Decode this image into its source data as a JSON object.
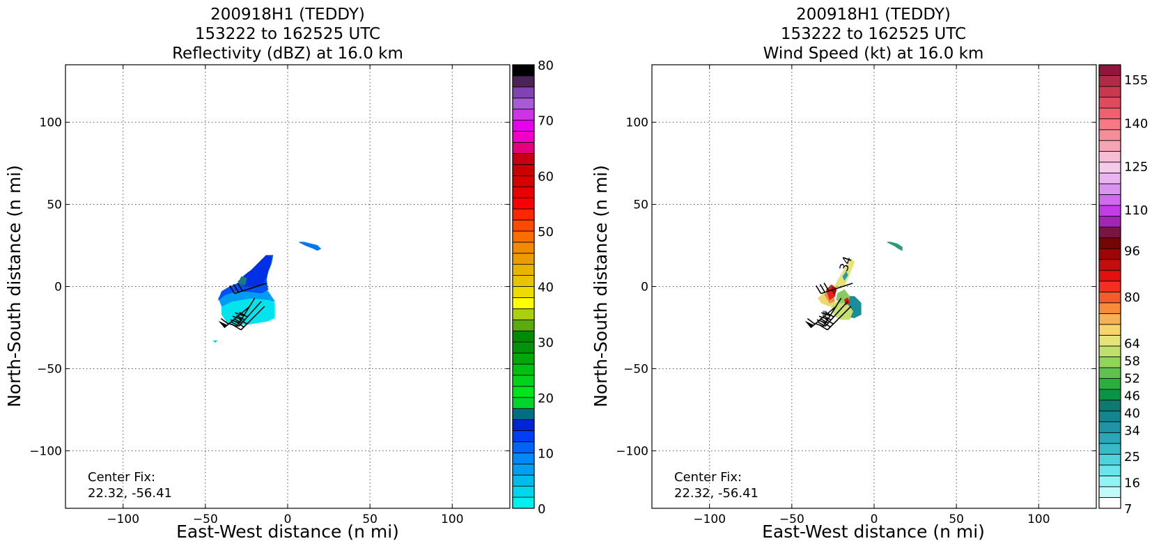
{
  "chart_data": [
    {
      "type": "heatmap",
      "title_lines": [
        "200918H1 (TEDDY)",
        "153222 to 162525 UTC",
        "Reflectivity (dBZ) at 16.0 km"
      ],
      "xlabel": "East-West distance (n mi)",
      "ylabel": "North-South distance (n mi)",
      "xlim": [
        -135,
        135
      ],
      "ylim": [
        -135,
        135
      ],
      "xticks": [
        -100,
        -50,
        0,
        50,
        100
      ],
      "yticks": [
        -100,
        -50,
        0,
        50,
        100
      ],
      "grid": true,
      "annotation": [
        "Center Fix:",
        "22.32, -56.41"
      ],
      "colorbar": {
        "min": 0,
        "max": 80,
        "ticks": [
          0,
          10,
          20,
          30,
          40,
          50,
          60,
          70,
          80
        ],
        "colors": [
          "#00f0f0",
          "#00d6ec",
          "#00bbeb",
          "#00a0f0",
          "#0089f7",
          "#0064fa",
          "#003ef6",
          "#0024d6",
          "#006e82",
          "#00d52c",
          "#00e41c",
          "#00d31a",
          "#00c010",
          "#00a80b",
          "#009209",
          "#008a05",
          "#5aac0c",
          "#abd00d",
          "#ffff00",
          "#ecdd00",
          "#e8c400",
          "#e8b400",
          "#ec9c00",
          "#f08a00",
          "#fa6e00",
          "#ff4800",
          "#fe2600",
          "#fb0000",
          "#e90000",
          "#d70000",
          "#cc0000",
          "#c60012",
          "#e5007b",
          "#f000c6",
          "#e600ec",
          "#cc35e6",
          "#aa5ad6",
          "#8044b0",
          "#4a2458",
          "#000000"
        ]
      },
      "echo_regions": [
        {
          "color": "#00e4ee",
          "polygon": [
            [
              -40,
              -17
            ],
            [
              -36,
              -23
            ],
            [
              -24,
              -23
            ],
            [
              -12,
              -21
            ],
            [
              -8,
              -19
            ],
            [
              -8,
              -10
            ],
            [
              -12,
              -7
            ],
            [
              -22,
              -6
            ],
            [
              -34,
              -8
            ],
            [
              -40,
              -12
            ]
          ]
        },
        {
          "color": "#009cf4",
          "polygon": [
            [
              -40,
              -12
            ],
            [
              -42,
              -7
            ],
            [
              -38,
              -3
            ],
            [
              -32,
              -2
            ],
            [
              -22,
              -1
            ],
            [
              -12,
              -3
            ],
            [
              -8,
              -9
            ],
            [
              -12,
              -8
            ],
            [
              -22,
              -7
            ],
            [
              -34,
              -9
            ]
          ]
        },
        {
          "color": "#0050f8",
          "polygon": [
            [
              -42,
              -8
            ],
            [
              -40,
              -3
            ],
            [
              -35,
              0
            ],
            [
              -30,
              2
            ],
            [
              -26,
              5
            ],
            [
              -22,
              8
            ],
            [
              -18,
              12
            ],
            [
              -15,
              16
            ],
            [
              -12,
              19
            ],
            [
              -9,
              19
            ],
            [
              -10,
              14
            ],
            [
              -12,
              9
            ],
            [
              -13,
              4
            ],
            [
              -12,
              -2
            ],
            [
              -16,
              -4
            ],
            [
              -24,
              -3
            ],
            [
              -32,
              -3
            ],
            [
              -38,
              -5
            ]
          ]
        },
        {
          "color": "#0030e6",
          "polygon": [
            [
              -30,
              3
            ],
            [
              -26,
              7
            ],
            [
              -22,
              10
            ],
            [
              -17,
              15
            ],
            [
              -13,
              19
            ],
            [
              -10,
              18
            ],
            [
              -11,
              12
            ],
            [
              -13,
              6
            ],
            [
              -15,
              2
            ],
            [
              -20,
              0
            ],
            [
              -26,
              0
            ]
          ]
        },
        {
          "color": "#1a7a82",
          "polygon": [
            [
              -30,
              2
            ],
            [
              -28,
              6
            ],
            [
              -25,
              5
            ],
            [
              -26,
              1
            ]
          ]
        },
        {
          "color": "#0078f4",
          "polygon": [
            [
              7,
              27
            ],
            [
              11,
              25
            ],
            [
              16,
              23
            ],
            [
              18,
              22
            ],
            [
              20,
              23
            ],
            [
              18,
              25
            ],
            [
              14,
              26
            ],
            [
              10,
              27
            ]
          ]
        },
        {
          "color": "#00d0ec",
          "polygon": [
            [
              -45,
              -33
            ],
            [
              -44,
              -34
            ],
            [
              -43,
              -33
            ]
          ]
        }
      ],
      "wind_barbs": [
        {
          "x": -20,
          "y": -7,
          "dir_from_deg": 212,
          "flags": 0,
          "full": 4,
          "half": 0
        },
        {
          "x": -13,
          "y": 2,
          "dir_from_deg": 252,
          "flags": 0,
          "full": 3,
          "half": 0
        },
        {
          "x": -23,
          "y": -12,
          "dir_from_deg": 230,
          "flags": 1,
          "full": 1,
          "half": 0
        },
        {
          "x": -16,
          "y": -9,
          "dir_from_deg": 222,
          "flags": 0,
          "full": 4,
          "half": 0
        },
        {
          "x": -14,
          "y": -12,
          "dir_from_deg": 225,
          "flags": 0,
          "full": 3,
          "half": 0
        }
      ]
    },
    {
      "type": "heatmap",
      "title_lines": [
        "200918H1 (TEDDY)",
        "153222 to 162525 UTC",
        "Wind Speed (kt) at 16.0 km"
      ],
      "xlabel": "East-West distance (n mi)",
      "ylabel": "North-South distance (n mi)",
      "xlim": [
        -135,
        135
      ],
      "ylim": [
        -135,
        135
      ],
      "xticks": [
        -100,
        -50,
        0,
        50,
        100
      ],
      "yticks": [
        -100,
        -50,
        0,
        50,
        100
      ],
      "grid": true,
      "annotation": [
        "Center Fix:",
        "22.32, -56.41"
      ],
      "contour_label": "34",
      "colorbar": {
        "min": 7,
        "max": 160,
        "ticks": [
          7,
          16,
          25,
          34,
          40,
          46,
          52,
          58,
          64,
          80,
          96,
          110,
          125,
          140,
          155
        ],
        "colors": [
          "#ffffff",
          "#c2fafa",
          "#90f4f4",
          "#6ae6ea",
          "#4fd2dc",
          "#36bac8",
          "#2aa7b6",
          "#1e94a6",
          "#14848e",
          "#0c7a6e",
          "#089444",
          "#2aae3e",
          "#5ec24c",
          "#92d45a",
          "#c0e06e",
          "#e4e47a",
          "#f8d46c",
          "#f8b054",
          "#f88a3c",
          "#f45c2c",
          "#f42e20",
          "#e41010",
          "#c40e0e",
          "#9c0606",
          "#740606",
          "#7a1440",
          "#a424b4",
          "#c43ce8",
          "#d06aee",
          "#dc92f0",
          "#eab4f0",
          "#f4ccea",
          "#f8bcd4",
          "#f7a4b4",
          "#f68e9a",
          "#f67a84",
          "#f06070",
          "#e04a5e",
          "#c8394f",
          "#b02c46",
          "#92163c"
        ]
      },
      "wind_regions": [
        {
          "color": "#1a8c9a",
          "polygon": [
            [
              -18,
              -6
            ],
            [
              -12,
              -6
            ],
            [
              -8,
              -10
            ],
            [
              -8,
              -17
            ],
            [
              -12,
              -19
            ],
            [
              -18,
              -18
            ],
            [
              -20,
              -13
            ]
          ]
        },
        {
          "color": "#c8e070",
          "polygon": [
            [
              -26,
              -12
            ],
            [
              -24,
              -18
            ],
            [
              -20,
              -20
            ],
            [
              -15,
              -20
            ],
            [
              -13,
              -15
            ],
            [
              -17,
              -10
            ],
            [
              -22,
              -9
            ]
          ]
        },
        {
          "color": "#88cc60",
          "polygon": [
            [
              -22,
              -4
            ],
            [
              -18,
              -2
            ],
            [
              -15,
              -6
            ],
            [
              -16,
              -10
            ],
            [
              -20,
              -10
            ],
            [
              -23,
              -8
            ]
          ]
        },
        {
          "color": "#f0d870",
          "polygon": [
            [
              -34,
              -7
            ],
            [
              -32,
              -10
            ],
            [
              -27,
              -12
            ],
            [
              -24,
              -10
            ],
            [
              -26,
              -5
            ],
            [
              -30,
              -4
            ]
          ]
        },
        {
          "color": "#f09040",
          "polygon": [
            [
              -30,
              -5
            ],
            [
              -27,
              -10
            ],
            [
              -24,
              -9
            ],
            [
              -25,
              -4
            ],
            [
              -28,
              -3
            ]
          ]
        },
        {
          "color": "#e82020",
          "polygon": [
            [
              -29,
              -2
            ],
            [
              -27,
              -8
            ],
            [
              -24,
              -6
            ],
            [
              -23,
              -1
            ],
            [
              -26,
              1
            ]
          ]
        },
        {
          "color": "#a40c0c",
          "polygon": [
            [
              -26,
              -2
            ],
            [
              -24,
              -5
            ],
            [
              -23,
              -2
            ],
            [
              -25,
              0
            ]
          ]
        },
        {
          "color": "#e4e47a",
          "polygon": [
            [
              -24,
              0
            ],
            [
              -22,
              4
            ],
            [
              -19,
              9
            ],
            [
              -16,
              14
            ],
            [
              -14,
              17
            ],
            [
              -12,
              15
            ],
            [
              -14,
              10
            ],
            [
              -16,
              5
            ],
            [
              -18,
              1
            ],
            [
              -21,
              -1
            ]
          ]
        },
        {
          "color": "#2a9ab0",
          "polygon": [
            [
              -19,
              6
            ],
            [
              -17,
              9
            ],
            [
              -16,
              7
            ],
            [
              -18,
              4
            ]
          ]
        },
        {
          "color": "#e41010",
          "polygon": [
            [
              -18,
              -8
            ],
            [
              -16,
              -7
            ],
            [
              -15,
              -10
            ],
            [
              -17,
              -11
            ]
          ]
        },
        {
          "color": "#2a9a7a",
          "polygon": [
            [
              8,
              27
            ],
            [
              12,
              25
            ],
            [
              15,
              23
            ],
            [
              17,
              22
            ],
            [
              17,
              24
            ],
            [
              14,
              26
            ],
            [
              10,
              27
            ]
          ]
        },
        {
          "color": "#6a7a7a",
          "polygon": [
            [
              -31,
              -15
            ],
            [
              -29,
              -15
            ],
            [
              -29,
              -17
            ],
            [
              -31,
              -17
            ]
          ]
        }
      ],
      "wind_barbs": [
        {
          "x": -20,
          "y": -7,
          "dir_from_deg": 212,
          "flags": 0,
          "full": 4,
          "half": 0
        },
        {
          "x": -13,
          "y": 2,
          "dir_from_deg": 252,
          "flags": 0,
          "full": 3,
          "half": 0
        },
        {
          "x": -23,
          "y": -12,
          "dir_from_deg": 230,
          "flags": 1,
          "full": 1,
          "half": 0
        },
        {
          "x": -16,
          "y": -9,
          "dir_from_deg": 222,
          "flags": 0,
          "full": 4,
          "half": 0
        },
        {
          "x": -14,
          "y": -12,
          "dir_from_deg": 225,
          "flags": 0,
          "full": 3,
          "half": 0
        }
      ]
    }
  ]
}
